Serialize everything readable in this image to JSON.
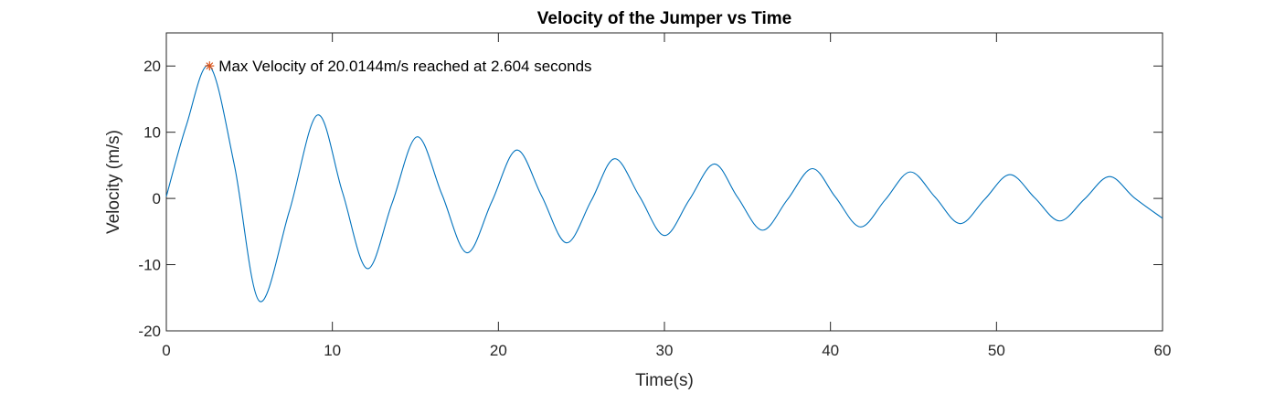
{
  "chart_data": {
    "type": "line",
    "title": "Velocity of the Jumper vs Time",
    "xlabel": "Time(s)",
    "ylabel": "Velocity (m/s)",
    "xlim": [
      0,
      60
    ],
    "ylim": [
      -20,
      25
    ],
    "xticks": [
      0,
      10,
      20,
      30,
      40,
      50,
      60
    ],
    "yticks": [
      -20,
      -10,
      0,
      10,
      20
    ],
    "grid": false,
    "box": true,
    "series": [
      {
        "color": "#0072BD",
        "x": [
          0,
          1.2,
          2.6,
          4.1,
          5.6,
          7.4,
          9.1,
          10.6,
          12.1,
          13.6,
          15.1,
          16.6,
          18.1,
          19.6,
          21.1,
          22.6,
          24.1,
          25.6,
          27.0,
          28.5,
          30.0,
          31.5,
          33.0,
          34.4,
          35.9,
          37.4,
          38.9,
          40.3,
          41.8,
          43.3,
          44.8,
          46.3,
          47.8,
          49.3,
          50.8,
          52.3,
          53.8,
          55.3,
          56.8,
          58.3,
          60.0
        ],
        "y": [
          0.3,
          11.0,
          20.0,
          5.0,
          -15.5,
          -2.0,
          12.6,
          1.0,
          -10.6,
          -0.7,
          9.3,
          0.6,
          -8.2,
          -0.5,
          7.3,
          0.4,
          -6.7,
          -0.3,
          6.0,
          0.3,
          -5.6,
          -0.2,
          5.2,
          0.2,
          -4.8,
          -0.2,
          4.5,
          0.2,
          -4.3,
          -0.2,
          4.0,
          0.2,
          -3.8,
          -0.1,
          3.6,
          0.1,
          -3.4,
          -0.1,
          3.3,
          0.1,
          -3.0
        ]
      }
    ],
    "marker": {
      "x": 2.604,
      "y": 20.0144,
      "symbol": "*",
      "color": "#D95319"
    },
    "annotation": "Max Velocity of 20.0144m/s reached at 2.604 seconds"
  }
}
